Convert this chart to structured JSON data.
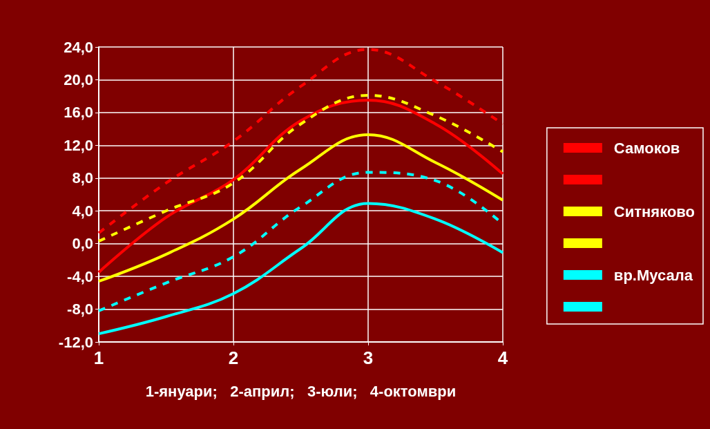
{
  "chart_data": {
    "type": "line",
    "xlabel": "1-януари;   2-април;   3-юли;   4-октомври",
    "x": [
      1,
      1.5,
      2,
      2.5,
      3,
      3.5,
      4
    ],
    "xlim": [
      1,
      4
    ],
    "xticks": [
      1,
      2,
      3,
      4
    ],
    "ylim": [
      -12,
      24
    ],
    "yticks": [
      {
        "value": -12,
        "label": "-12,0"
      },
      {
        "value": -8,
        "label": "-8,0"
      },
      {
        "value": -4,
        "label": "-4,0"
      },
      {
        "value": 0,
        "label": "0,0"
      },
      {
        "value": 4,
        "label": "4,0"
      },
      {
        "value": 8,
        "label": "8,0"
      },
      {
        "value": 12,
        "label": "12,0"
      },
      {
        "value": 16,
        "label": "16,0"
      },
      {
        "value": 20,
        "label": "20,0"
      },
      {
        "value": 24,
        "label": "24,0"
      }
    ],
    "grid": true,
    "legend": "right",
    "marker": "none",
    "series": [
      {
        "name": "Самоков",
        "color": "#ff0000",
        "line_style": "dashed",
        "values": [
          1.3,
          7.4,
          12.5,
          19.2,
          23.7,
          19.8,
          14.6
        ]
      },
      {
        "color": "#ff0000",
        "line_style": "solid",
        "values": [
          -3.5,
          3.2,
          7.8,
          15.0,
          17.5,
          14.6,
          8.5
        ]
      },
      {
        "name": "Ситняково",
        "color": "#ffff00",
        "line_style": "dashed",
        "values": [
          0.3,
          4.0,
          7.4,
          14.6,
          18.1,
          15.6,
          11.2
        ]
      },
      {
        "color": "#ffff00",
        "line_style": "solid",
        "values": [
          -4.6,
          -1.3,
          3.0,
          9.1,
          13.3,
          9.9,
          5.3
        ]
      },
      {
        "name": "вр.Мусала",
        "color": "#00ffff",
        "line_style": "dashed",
        "values": [
          -8.2,
          -4.8,
          -1.6,
          4.5,
          8.7,
          7.7,
          2.4
        ]
      },
      {
        "color": "#00ffff",
        "line_style": "solid",
        "values": [
          -11.0,
          -8.9,
          -6.1,
          -0.6,
          4.9,
          3.0,
          -1.1
        ]
      }
    ]
  }
}
